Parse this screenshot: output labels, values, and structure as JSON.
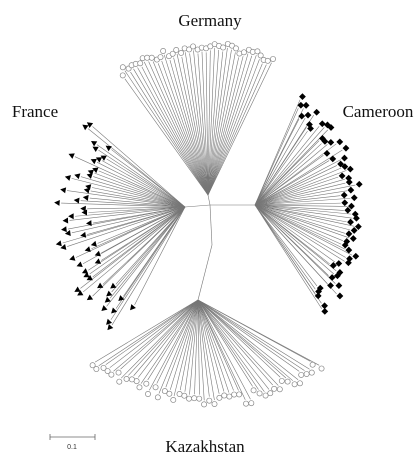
{
  "labels": {
    "top": "Germany",
    "left": "France",
    "right": "Cameroon",
    "bottom": "Kazakhstan"
  },
  "scale_bar": "0.1"
}
